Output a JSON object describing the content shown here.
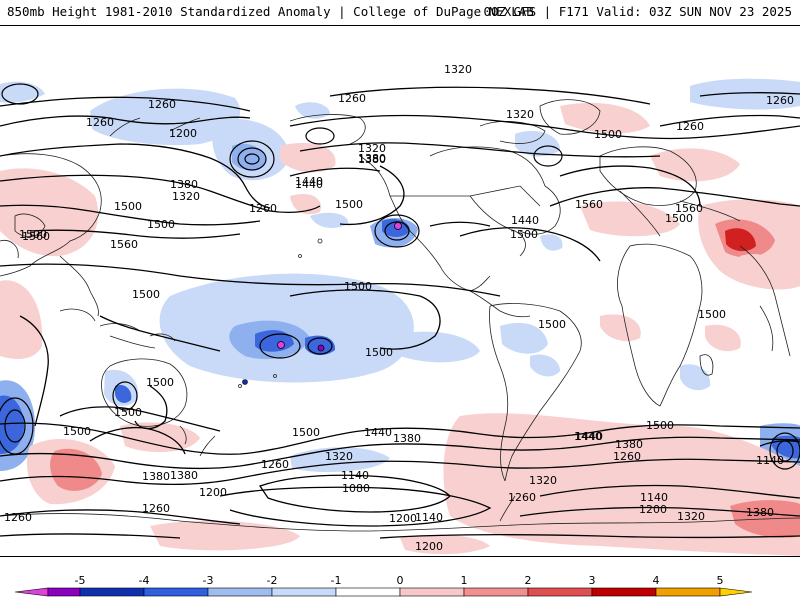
{
  "header": {
    "title": "850mb Height 1981-2010 Standardized Anomaly | College of DuPage NEXLAB",
    "run": "00Z GFS | F171 Valid: 03Z SUN NOV 23 2025"
  },
  "contour_labels": [
    "1320",
    "1260",
    "1260",
    "1200",
    "1320",
    "1260",
    "1320",
    "1380",
    "1440",
    "1380",
    "1260",
    "1500",
    "1320",
    "1380",
    "1500",
    "1440",
    "1500",
    "1560",
    "1560",
    "1500",
    "1500",
    "1560",
    "1500",
    "1560",
    "1440",
    "1500",
    "1500",
    "1500",
    "1500",
    "1500",
    "1500",
    "1500",
    "1500",
    "1440",
    "1500",
    "1500",
    "1440",
    "1380",
    "1440",
    "1380",
    "1320",
    "1260",
    "1320",
    "1380",
    "1260",
    "1200",
    "1260",
    "1140",
    "1080",
    "1200",
    "1140",
    "1260",
    "1140",
    "1200",
    "1320",
    "1380",
    "1260",
    "1500",
    "1260",
    "1260",
    "1200",
    "1140",
    "1380"
  ],
  "colorbar": {
    "ticks": [
      "-5",
      "-4",
      "-3",
      "-2",
      "-1",
      "0",
      "1",
      "2",
      "3",
      "4",
      "5"
    ],
    "colors": [
      "#e040e0",
      "#8c00c0",
      "#1030b0",
      "#3060e0",
      "#9fbcf0",
      "#c8daf8",
      "#ffffff",
      "#f8c8c8",
      "#f09090",
      "#e05050",
      "#c00000",
      "#f0a000",
      "#ffd000"
    ]
  },
  "colors": {
    "neg_anom_light": "#c8daf8",
    "neg_anom_mid": "#8fb0ee",
    "neg_anom_strong": "#3c66dc",
    "pos_anom_light": "#f9d0d0",
    "pos_anom_mid": "#f08a8a",
    "pos_anom_strong": "#d02020"
  }
}
